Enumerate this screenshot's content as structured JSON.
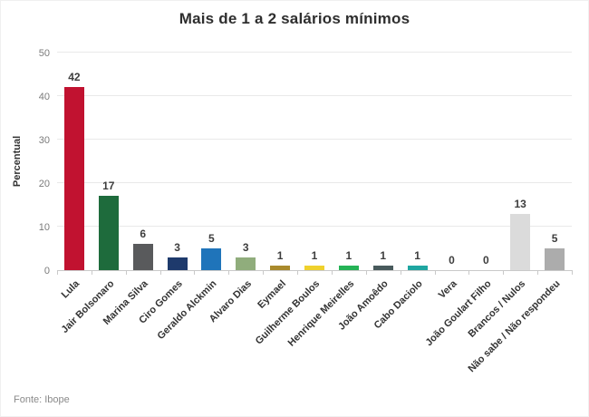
{
  "title": "Mais de 1 a 2 salários mínimos",
  "source": "Fonte: Ibope",
  "chart_data": {
    "type": "bar",
    "title": "Mais de 1 a 2 salários mínimos",
    "xlabel": "",
    "ylabel": "Percentual",
    "ylim": [
      0,
      50
    ],
    "yticks": [
      0,
      10,
      20,
      30,
      40,
      50
    ],
    "grid": true,
    "legend": "none",
    "categories": [
      "Lula",
      "Jair Bolsonaro",
      "Marina Silva",
      "Ciro Gomes",
      "Geraldo Alckmin",
      "Alvaro Dias",
      "Eymael",
      "Guilherme Boulos",
      "Henrique Meirelles",
      "João Amoêdo",
      "Cabo Daciolo",
      "Vera",
      "João Goulart Filho",
      "Brancos / Nulos",
      "Não sabe / Não respondeu"
    ],
    "values": [
      42,
      17,
      6,
      3,
      5,
      3,
      1,
      1,
      1,
      1,
      1,
      0,
      0,
      13,
      5
    ],
    "colors": [
      "#c11230",
      "#1e6b3c",
      "#595a5c",
      "#1e3a6c",
      "#1f74ba",
      "#90ad7c",
      "#a98a2c",
      "#efd12d",
      "#25b356",
      "#485a5c",
      "#1fa6a1",
      "#cccccc",
      "#cccccc",
      "#dbdbdb",
      "#acacac"
    ]
  }
}
